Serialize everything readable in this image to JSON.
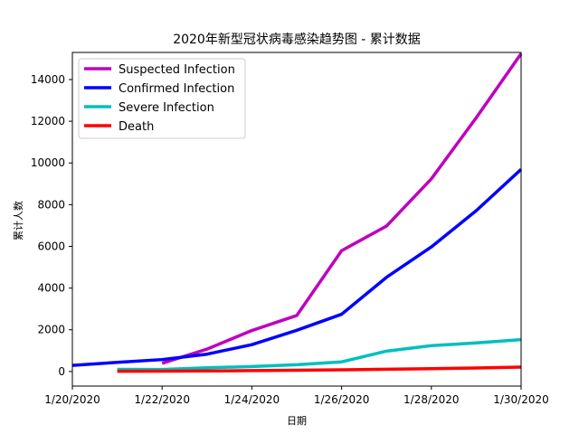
{
  "chart_data": {
    "type": "line",
    "title": "2020年新型冠状病毒感染趋势图 - 累计数据",
    "xlabel": "日期",
    "ylabel": "累计人数",
    "xlim": [
      "1/20/2020",
      "1/30/2020"
    ],
    "ylim": [
      -700,
      15300
    ],
    "x_ticks": [
      "1/20/2020",
      "1/22/2020",
      "1/24/2020",
      "1/26/2020",
      "1/28/2020",
      "1/30/2020"
    ],
    "y_ticks": [
      0,
      2000,
      4000,
      6000,
      8000,
      10000,
      12000,
      14000
    ],
    "grid": false,
    "legend_position": "top-left",
    "series": [
      {
        "name": "Suspected Infection",
        "color": "#bf00bf",
        "x": [
          "1/22/2020",
          "1/23/2020",
          "1/24/2020",
          "1/25/2020",
          "1/26/2020",
          "1/27/2020",
          "1/28/2020",
          "1/29/2020",
          "1/30/2020"
        ],
        "values": [
          393,
          1072,
          1965,
          2684,
          5794,
          6973,
          9239,
          12167,
          15238
        ]
      },
      {
        "name": "Confirmed Infection",
        "color": "#0000ff",
        "x": [
          "1/20/2020",
          "1/21/2020",
          "1/22/2020",
          "1/23/2020",
          "1/24/2020",
          "1/25/2020",
          "1/26/2020",
          "1/27/2020",
          "1/28/2020",
          "1/29/2020",
          "1/30/2020"
        ],
        "values": [
          291,
          440,
          571,
          830,
          1287,
          1975,
          2744,
          4515,
          5974,
          7711,
          9692
        ]
      },
      {
        "name": "Severe Infection",
        "color": "#00bfbf",
        "x": [
          "1/21/2020",
          "1/22/2020",
          "1/23/2020",
          "1/24/2020",
          "1/25/2020",
          "1/26/2020",
          "1/27/2020",
          "1/28/2020",
          "1/29/2020",
          "1/30/2020"
        ],
        "values": [
          102,
          95,
          177,
          237,
          324,
          461,
          976,
          1239,
          1370,
          1527
        ]
      },
      {
        "name": "Death",
        "color": "#ff0000",
        "x": [
          "1/21/2020",
          "1/22/2020",
          "1/23/2020",
          "1/24/2020",
          "1/25/2020",
          "1/26/2020",
          "1/27/2020",
          "1/28/2020",
          "1/29/2020",
          "1/30/2020"
        ],
        "values": [
          9,
          17,
          25,
          41,
          56,
          80,
          106,
          132,
          170,
          213
        ]
      }
    ]
  }
}
